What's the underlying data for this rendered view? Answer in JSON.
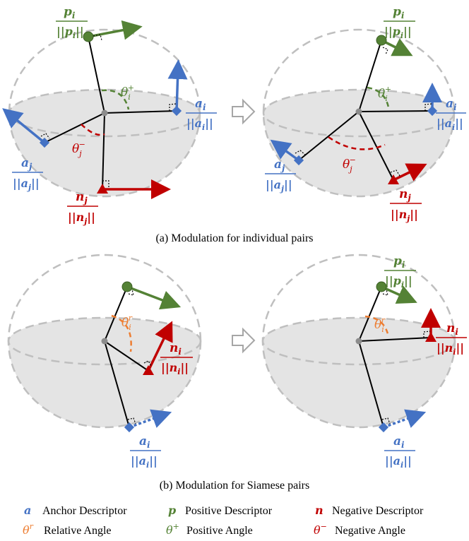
{
  "colors": {
    "anchor": "#4472C4",
    "positive": "#548235",
    "negative": "#C00000",
    "relative": "#ED7D31",
    "sphere_fill": "#E4E4E4",
    "sphere_line": "#BFBFBF",
    "arrow_glyph": "#A6A6A6"
  },
  "captions": {
    "a": "(a) Modulation for individual pairs",
    "b": "(b) Modulation for Siamese pairs"
  },
  "labels": {
    "p_i_num": "p",
    "p_i_sub": "i",
    "a_i_num": "a",
    "a_i_sub": "i",
    "a_j_num": "a",
    "a_j_sub": "j",
    "n_j_num": "n",
    "n_j_sub": "j",
    "n_i_num": "n",
    "n_i_sub": "i",
    "theta": "θ",
    "theta_i_plus_sub": "i",
    "theta_i_plus_sup": "+",
    "theta_j_minus_sub": "j",
    "theta_j_minus_sup": "−",
    "theta_i_r_sub": "i",
    "theta_i_r_sup": "r"
  },
  "legend": {
    "row1": [
      {
        "symbol": "a",
        "text": "Anchor Descriptor",
        "color": "anchor"
      },
      {
        "symbol": "p",
        "text": "Positive Descriptor",
        "color": "positive"
      },
      {
        "symbol": "n",
        "text": "Negative Descriptor",
        "color": "negative"
      }
    ],
    "row2": [
      {
        "symbol": "θ",
        "sup": "r",
        "text": "Relative Angle",
        "color": "relative"
      },
      {
        "symbol": "θ",
        "sup": "+",
        "text": "Positive Angle",
        "color": "positive"
      },
      {
        "symbol": "θ",
        "sup": "−",
        "text": "Negative Angle",
        "color": "negative"
      }
    ]
  }
}
